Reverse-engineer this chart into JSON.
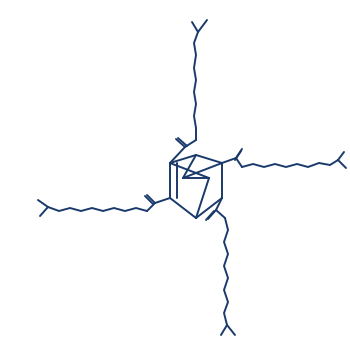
{
  "bg_color": "#ffffff",
  "line_color": "#1a3a6b",
  "line_width": 1.4,
  "fig_width": 3.5,
  "fig_height": 3.49,
  "dpi": 100
}
